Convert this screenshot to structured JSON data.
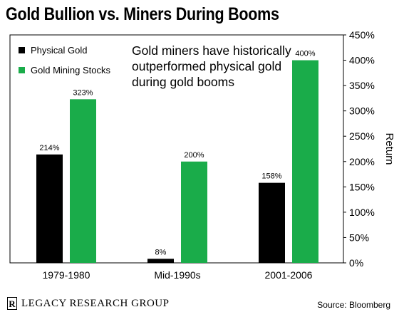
{
  "header": {
    "title": "Gold Bullion vs. Miners During Booms"
  },
  "annotation": "Gold miners have historically outperformed physical gold during gold booms",
  "footer": {
    "logo_letter": "R",
    "logo_text": "LEGACY RESEARCH GROUP",
    "source": "Source: Bloomberg"
  },
  "colors": {
    "physical_gold": "#000000",
    "gold_mining_stocks": "#1aac4a"
  },
  "chart_data": {
    "type": "bar",
    "title": "Gold Bullion vs. Miners During Booms",
    "categories": [
      "1979-1980",
      "Mid-1990s",
      "2001-2006"
    ],
    "series": [
      {
        "name": "Physical Gold",
        "values": [
          214,
          8,
          158
        ],
        "labels": [
          "214%",
          "8%",
          "158%"
        ],
        "color": "#000000"
      },
      {
        "name": "Gold Mining Stocks",
        "values": [
          323,
          200,
          400
        ],
        "labels": [
          "323%",
          "200%",
          "400%"
        ],
        "color": "#1aac4a"
      }
    ],
    "xlabel": "",
    "ylabel": "Return",
    "ylim": [
      0,
      450
    ],
    "yticks": [
      0,
      50,
      100,
      150,
      200,
      250,
      300,
      350,
      400,
      450
    ],
    "ytick_labels": [
      "0%",
      "50%",
      "100%",
      "150%",
      "200%",
      "250%",
      "300%",
      "350%",
      "400%",
      "450%"
    ],
    "y_axis_side": "right",
    "grid": false,
    "legend": "top-left"
  }
}
